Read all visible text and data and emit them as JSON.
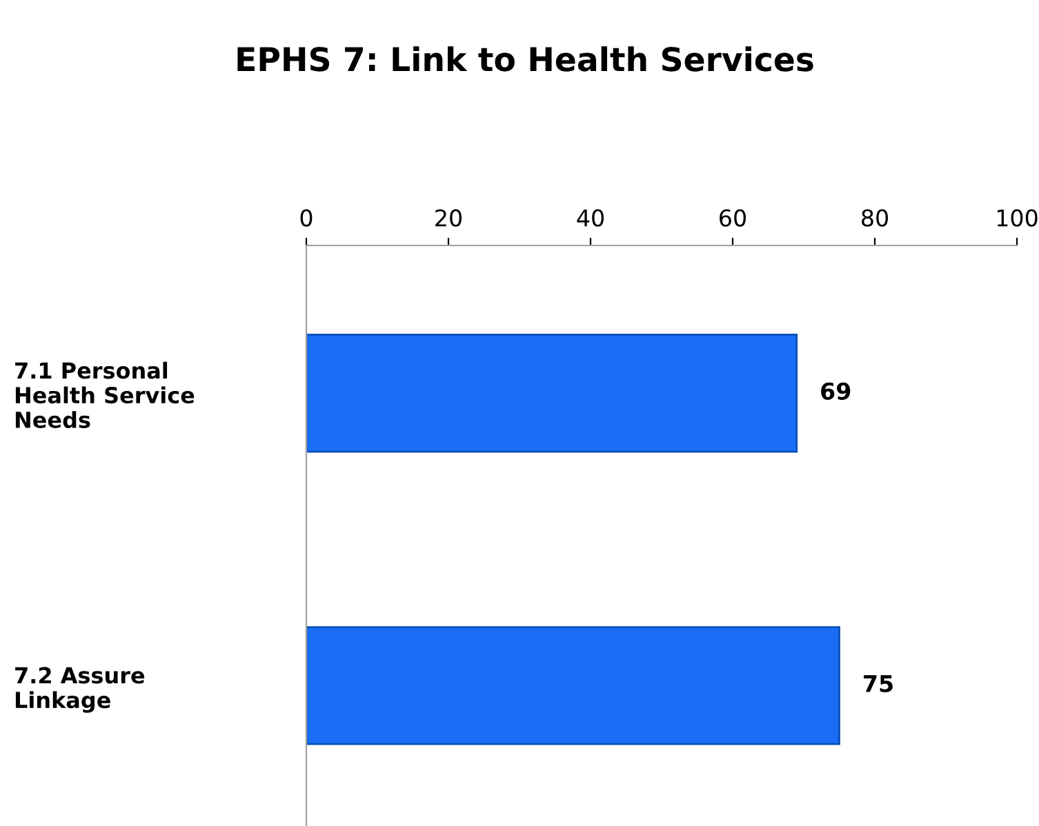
{
  "chart_data": {
    "type": "bar",
    "orientation": "horizontal",
    "title": "EPHS 7: Link to Health Services",
    "categories": [
      "7.1 Personal\nHealth Service\nNeeds",
      "7.2 Assure\nLinkage"
    ],
    "values": [
      69,
      75
    ],
    "color": "#1a6ef5",
    "xlim": [
      0,
      100
    ],
    "xticks": [
      0,
      20,
      40,
      60,
      80,
      100
    ],
    "data_labels": true,
    "grid": false,
    "legend": false
  }
}
